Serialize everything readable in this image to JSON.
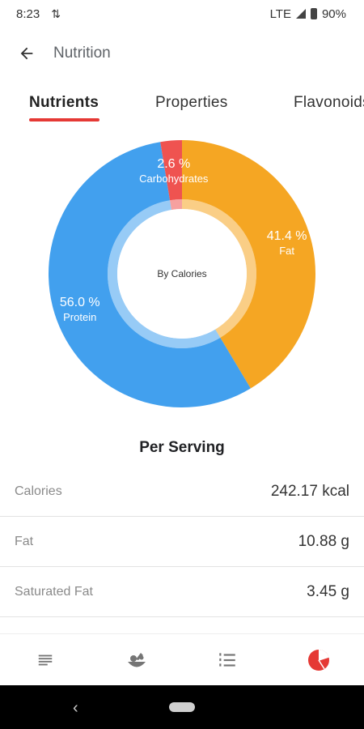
{
  "status_bar": {
    "time": "8:23",
    "network": "LTE",
    "battery": "90%"
  },
  "app_bar": {
    "title": "Nutrition"
  },
  "tabs": [
    {
      "label": "Nutrients",
      "active": true
    },
    {
      "label": "Properties",
      "active": false
    },
    {
      "label": "Flavonoids",
      "active": false
    }
  ],
  "chart_data": {
    "type": "pie",
    "title": "",
    "center_label": "By Calories",
    "slices": [
      {
        "label": "Fat",
        "percent_text": "41.4 %",
        "value": 41.4,
        "color": "#F5A623"
      },
      {
        "label": "Protein",
        "percent_text": "56.0 %",
        "value": 56.0,
        "color": "#42A0EE"
      },
      {
        "label": "Carbohydrates",
        "percent_text": "2.6 %",
        "value": 2.6,
        "color": "#EF5350"
      }
    ]
  },
  "per_serving": {
    "heading": "Per Serving",
    "rows": [
      {
        "label": "Calories",
        "value": "242.17 kcal"
      },
      {
        "label": "Fat",
        "value": "10.88 g"
      },
      {
        "label": "Saturated Fat",
        "value": "3.45 g"
      }
    ]
  },
  "bottom_nav": {
    "items": [
      {
        "icon": "summary-lines-icon",
        "active": false
      },
      {
        "icon": "ingredients-bowl-icon",
        "active": false
      },
      {
        "icon": "steps-list-icon",
        "active": false
      },
      {
        "icon": "nutrition-pie-icon",
        "active": true
      }
    ],
    "active_color": "#E53935",
    "inactive_color": "#757575"
  }
}
